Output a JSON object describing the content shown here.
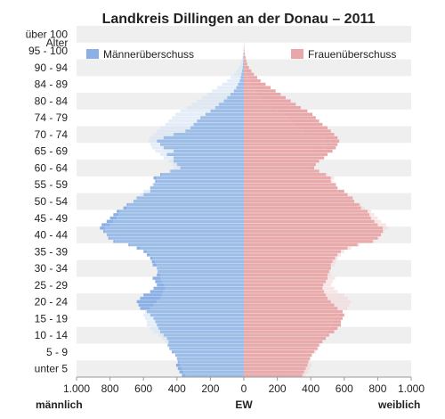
{
  "chart_data": {
    "type": "bar",
    "orientation": "horizontal-population-pyramid",
    "title": "Landkreis Dillingen an der Donau – 2011",
    "y_axis_title": "Alter",
    "age_group_labels": [
      "unter 5",
      "5 - 9",
      "10 - 14",
      "15 - 19",
      "20 - 24",
      "25 - 29",
      "30 - 34",
      "35 - 39",
      "40 - 44",
      "45 - 49",
      "50 - 54",
      "55 - 59",
      "60 - 64",
      "65 - 69",
      "70 - 74",
      "74 - 79",
      "80 - 84",
      "84 - 89",
      "90 - 94",
      "95 - 100",
      "über 100"
    ],
    "x_tick_labels": [
      "1.000",
      "800",
      "600",
      "400",
      "200",
      "0",
      "200",
      "400",
      "600",
      "800",
      "1.000"
    ],
    "x_unit": "EW",
    "left_label": "männlich",
    "right_label": "weiblich",
    "xlim": [
      -1000,
      1000
    ],
    "ages": [
      0,
      100
    ],
    "series": [
      {
        "name": "Männerüberschuss",
        "color": "#8ab0e6"
      },
      {
        "name": "Frauenüberschuss",
        "color": "#e8a8aa"
      }
    ],
    "base_colors": {
      "male": "#9bbde8",
      "female": "#e8aaaa"
    },
    "legend_position": "top",
    "grid": "horizontal bands",
    "male": [
      370,
      385,
      395,
      405,
      395,
      400,
      410,
      430,
      445,
      455,
      450,
      460,
      480,
      500,
      510,
      520,
      530,
      540,
      560,
      580,
      620,
      630,
      640,
      620,
      600,
      560,
      540,
      520,
      530,
      545,
      520,
      515,
      520,
      545,
      550,
      560,
      580,
      600,
      640,
      690,
      780,
      810,
      820,
      840,
      860,
      850,
      820,
      800,
      780,
      760,
      720,
      700,
      660,
      640,
      600,
      560,
      560,
      540,
      530,
      540,
      500,
      440,
      380,
      400,
      420,
      420,
      460,
      420,
      480,
      500,
      520,
      480,
      420,
      350,
      320,
      300,
      280,
      260,
      230,
      200,
      170,
      150,
      120,
      100,
      80,
      60,
      45,
      35,
      25,
      20,
      15,
      10,
      7,
      5,
      4,
      3,
      2,
      1,
      1,
      0,
      0
    ],
    "female": [
      350,
      360,
      370,
      380,
      385,
      395,
      405,
      420,
      440,
      450,
      470,
      490,
      510,
      540,
      560,
      580,
      580,
      590,
      600,
      590,
      560,
      540,
      520,
      500,
      490,
      480,
      470,
      475,
      490,
      500,
      500,
      510,
      520,
      520,
      530,
      545,
      560,
      580,
      620,
      680,
      770,
      800,
      820,
      830,
      830,
      800,
      780,
      760,
      750,
      740,
      700,
      690,
      660,
      650,
      620,
      600,
      560,
      550,
      520,
      520,
      490,
      450,
      420,
      430,
      450,
      480,
      500,
      530,
      550,
      560,
      570,
      560,
      540,
      520,
      500,
      470,
      450,
      430,
      410,
      380,
      340,
      310,
      280,
      250,
      220,
      190,
      160,
      130,
      100,
      80,
      60,
      45,
      30,
      20,
      15,
      10,
      6,
      4,
      2,
      1,
      0
    ]
  }
}
